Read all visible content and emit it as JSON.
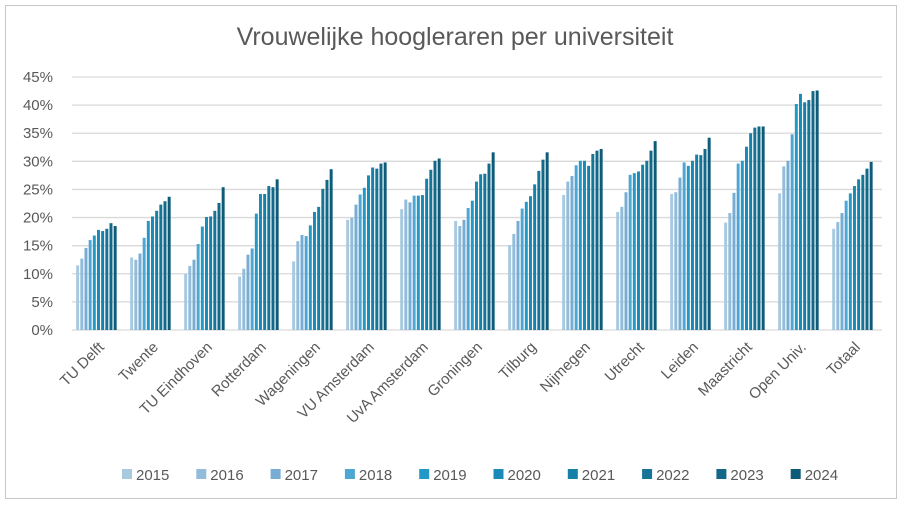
{
  "chart_data": {
    "type": "bar",
    "title": "Vrouwelijke hoogleraren per universiteit",
    "xlabel": "",
    "ylabel": "",
    "ylim": [
      0,
      45
    ],
    "yticks": [
      "0%",
      "5%",
      "10%",
      "15%",
      "20%",
      "25%",
      "30%",
      "35%",
      "40%",
      "45%"
    ],
    "grid": true,
    "legend_position": "bottom",
    "categories": [
      "TU Delft",
      "Twente",
      "TU Eindhoven",
      "Rotterdam",
      "Wageningen",
      "VU Amsterdam",
      "UvA Amsterdam",
      "Groningen",
      "Tilburg",
      "Nijmegen",
      "Utrecht",
      "Leiden",
      "Maastricht",
      "Open Univ.",
      "Totaal"
    ],
    "series": [
      {
        "name": "2015",
        "color": "#a9c9df",
        "values": [
          11.5,
          12.9,
          10.0,
          9.5,
          12.2,
          19.6,
          21.5,
          19.4,
          15.1,
          24.0,
          21.0,
          24.2,
          19.1,
          24.3,
          18.0
        ]
      },
      {
        "name": "2016",
        "color": "#93bcdb",
        "values": [
          12.7,
          12.5,
          11.4,
          10.9,
          15.8,
          20.0,
          23.2,
          18.5,
          17.1,
          26.4,
          21.9,
          24.5,
          20.8,
          29.1,
          19.2
        ]
      },
      {
        "name": "2017",
        "color": "#78acd2",
        "values": [
          14.6,
          13.6,
          12.5,
          13.4,
          16.9,
          22.3,
          22.7,
          19.6,
          19.4,
          27.4,
          24.5,
          27.1,
          24.4,
          30.1,
          20.8
        ]
      },
      {
        "name": "2018",
        "color": "#4ea6d2",
        "values": [
          16.0,
          16.4,
          15.3,
          14.5,
          16.7,
          24.1,
          23.9,
          21.7,
          21.6,
          29.3,
          27.6,
          29.8,
          29.6,
          34.8,
          23.0
        ]
      },
      {
        "name": "2019",
        "color": "#2399c8",
        "values": [
          16.8,
          19.4,
          18.4,
          20.7,
          18.6,
          25.3,
          23.9,
          23.0,
          22.8,
          30.1,
          27.9,
          29.2,
          30.1,
          40.2,
          24.3
        ]
      },
      {
        "name": "2020",
        "color": "#1a8bb8",
        "values": [
          17.8,
          20.2,
          20.1,
          24.2,
          21.0,
          27.5,
          24.0,
          26.4,
          23.8,
          30.1,
          28.2,
          30.1,
          32.6,
          42.0,
          25.6
        ]
      },
      {
        "name": "2021",
        "color": "#1780a9",
        "values": [
          17.6,
          21.2,
          20.2,
          24.2,
          21.9,
          28.9,
          26.9,
          27.7,
          25.9,
          29.2,
          29.4,
          31.2,
          35.0,
          40.5,
          26.8
        ]
      },
      {
        "name": "2022",
        "color": "#167496",
        "values": [
          18.0,
          22.3,
          21.2,
          25.6,
          25.1,
          28.7,
          28.5,
          27.8,
          28.3,
          31.3,
          30.1,
          31.1,
          36.0,
          40.9,
          27.6
        ]
      },
      {
        "name": "2023",
        "color": "#126886",
        "values": [
          19.0,
          22.9,
          22.6,
          25.4,
          26.7,
          29.6,
          30.1,
          29.6,
          30.3,
          31.9,
          31.9,
          32.2,
          36.2,
          42.5,
          28.7
        ]
      },
      {
        "name": "2024",
        "color": "#0d5b79",
        "values": [
          18.5,
          23.7,
          25.4,
          26.8,
          28.6,
          29.8,
          30.5,
          31.6,
          31.6,
          32.2,
          33.6,
          34.2,
          36.2,
          42.6,
          29.9
        ]
      }
    ]
  }
}
